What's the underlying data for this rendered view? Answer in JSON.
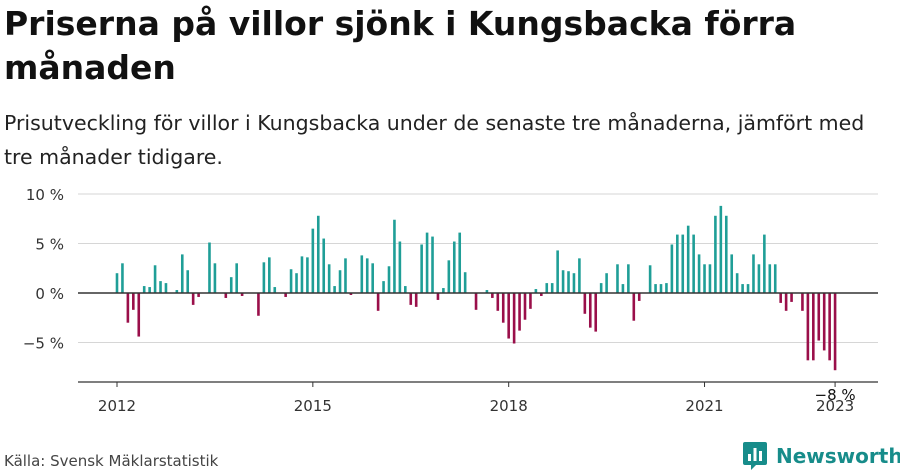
{
  "title": "Priserna på villor sjönk i Kungsbacka förra månaden",
  "subtitle": "Prisutveckling för villor i Kungsbacka under de senaste tre månaderna, jämfört med tre månader tidigare.",
  "source": "Källa: Svensk Mäklarstatistik",
  "brand": {
    "name": "Newsworthy",
    "icon": "newsworthy-bar-chart-logo-icon",
    "color": "#178c8a"
  },
  "colors": {
    "positive": "#1f9e97",
    "negative": "#9a0f4a",
    "grid": "#d6d6d6",
    "zero": "#333333"
  },
  "chart_data": {
    "type": "bar",
    "x_start": "2012-01",
    "frequency": "monthly",
    "ylim": [
      -9,
      10
    ],
    "yticks": [
      10,
      5,
      0,
      -5
    ],
    "ytick_labels": [
      "10 %",
      "5 %",
      "0 %",
      "−5 %"
    ],
    "xticks": [
      "2012",
      "2015",
      "2018",
      "2021",
      "2023"
    ],
    "last_label": "−8 %",
    "grid": true,
    "values": [
      2,
      3,
      -3,
      -1.7,
      -4.4,
      0.7,
      0.6,
      2.8,
      1.2,
      1,
      0,
      0.3,
      3.9,
      2.3,
      -1.2,
      -0.4,
      0,
      5.1,
      3,
      0,
      -0.5,
      1.6,
      3,
      -0.3,
      0,
      0,
      -2.3,
      3.1,
      3.6,
      0.6,
      0,
      -0.4,
      2.4,
      2,
      3.7,
      3.6,
      6.5,
      7.8,
      5.5,
      2.9,
      0.7,
      2.3,
      3.5,
      -0.2,
      0,
      3.8,
      3.5,
      3,
      -1.8,
      1.2,
      2.7,
      7.4,
      5.2,
      0.7,
      -1.2,
      -1.4,
      4.9,
      6.1,
      5.7,
      -0.7,
      0.5,
      3.3,
      5.2,
      6.1,
      2.1,
      0,
      -1.7,
      0,
      0.3,
      -0.5,
      -1.8,
      -3,
      -4.6,
      -5.1,
      -3.8,
      -2.7,
      -1.6,
      0.4,
      -0.3,
      1,
      1,
      4.3,
      2.3,
      2.2,
      2,
      3.5,
      -2.1,
      -3.5,
      -3.9,
      1,
      2,
      0,
      2.9,
      0.9,
      2.9,
      -2.8,
      -0.8,
      0,
      2.8,
      0.9,
      0.9,
      1,
      4.9,
      5.9,
      5.9,
      6.8,
      5.9,
      3.9,
      2.9,
      2.9,
      7.8,
      8.8,
      7.8,
      3.9,
      2,
      0.9,
      0.9,
      3.9,
      2.9,
      5.9,
      2.9,
      2.9,
      -1,
      -1.8,
      -0.9,
      0,
      -1.8,
      -6.8,
      -6.8,
      -4.8,
      -5.8,
      -6.8,
      -7.8
    ]
  }
}
